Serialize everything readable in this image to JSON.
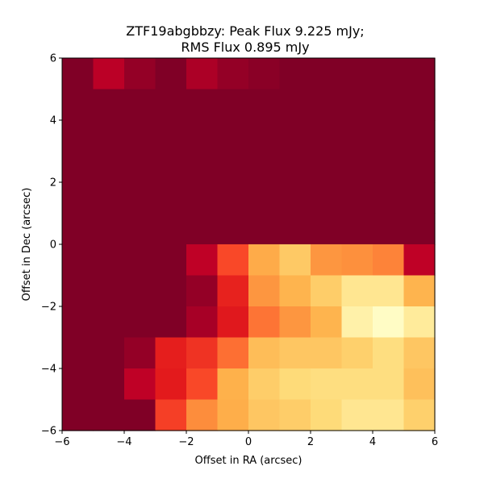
{
  "chart_data": {
    "type": "heatmap",
    "title_lines": [
      "ZTF19abgbbzy: Peak Flux 9.225 mJy;",
      "RMS Flux 0.895 mJy"
    ],
    "xlabel": "Offset in RA (arcsec)",
    "ylabel": "Offset in Dec (arcsec)",
    "xlim": [
      -6,
      6
    ],
    "ylim": [
      -6,
      6
    ],
    "xticks": [
      "−6",
      "−4",
      "−2",
      "0",
      "2",
      "4",
      "6"
    ],
    "yticks": [
      "−6",
      "−4",
      "−2",
      "0",
      "2",
      "4",
      "6"
    ],
    "colormap": "YlOrRd",
    "colormap_stops": [
      "#800026",
      "#bd0026",
      "#e31a1c",
      "#fc4e2a",
      "#fd8d3c",
      "#feb24c",
      "#fed976",
      "#ffeda0",
      "#ffffcc"
    ],
    "cell_size_arcsec": 1,
    "grid": false,
    "value_note": "normalized intensity (0 = darkest red, 1 = palest yellow), rows from top (Dec 6) to bottom (Dec -6), columns from left (RA -6) to right (RA 6)",
    "values": [
      [
        0.0,
        0.12,
        0.04,
        0.0,
        0.09,
        0.04,
        0.02,
        0.0,
        0.0,
        0.0,
        0.0,
        0.0
      ],
      [
        0.0,
        0.0,
        0.0,
        0.0,
        0.0,
        0.0,
        0.0,
        0.0,
        0.0,
        0.0,
        0.0,
        0.0
      ],
      [
        0.0,
        0.0,
        0.0,
        0.0,
        0.0,
        0.0,
        0.0,
        0.0,
        0.0,
        0.0,
        0.0,
        0.0
      ],
      [
        0.0,
        0.0,
        0.0,
        0.0,
        0.0,
        0.0,
        0.0,
        0.0,
        0.0,
        0.0,
        0.0,
        0.0
      ],
      [
        0.0,
        0.0,
        0.0,
        0.0,
        0.0,
        0.0,
        0.0,
        0.0,
        0.0,
        0.0,
        0.0,
        0.0
      ],
      [
        0.0,
        0.0,
        0.0,
        0.0,
        0.0,
        0.0,
        0.0,
        0.0,
        0.0,
        0.0,
        0.0,
        0.0
      ],
      [
        0.0,
        0.0,
        0.0,
        0.0,
        0.13,
        0.36,
        0.6,
        0.7,
        0.53,
        0.51,
        0.48,
        0.13
      ],
      [
        0.0,
        0.0,
        0.0,
        0.0,
        0.04,
        0.27,
        0.53,
        0.63,
        0.71,
        0.83,
        0.83,
        0.63
      ],
      [
        0.0,
        0.0,
        0.0,
        0.0,
        0.08,
        0.24,
        0.45,
        0.53,
        0.63,
        0.9,
        0.98,
        0.86
      ],
      [
        0.0,
        0.0,
        0.04,
        0.26,
        0.31,
        0.44,
        0.66,
        0.69,
        0.69,
        0.72,
        0.78,
        0.69
      ],
      [
        0.0,
        0.0,
        0.13,
        0.25,
        0.36,
        0.62,
        0.71,
        0.76,
        0.78,
        0.78,
        0.78,
        0.67
      ],
      [
        0.0,
        0.0,
        0.0,
        0.34,
        0.5,
        0.61,
        0.69,
        0.71,
        0.76,
        0.83,
        0.83,
        0.72
      ]
    ]
  }
}
